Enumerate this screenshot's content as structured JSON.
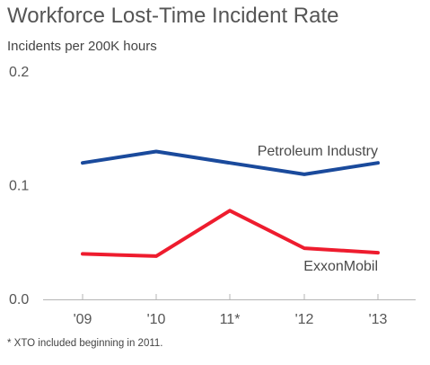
{
  "title": "Workforce Lost-Time Incident Rate",
  "subtitle": "Incidents per 200K hours",
  "footnote": "* XTO included beginning in 2011.",
  "colors": {
    "petroleum": "#1a4a9c",
    "exxonmobil": "#ee1c2e",
    "axis": "#b5b5b5",
    "text": "#555555"
  },
  "chart_data": {
    "type": "line",
    "title": "Workforce Lost-Time Incident Rate",
    "ylabel": "Incidents per 200K hours",
    "xlabel": "",
    "categories": [
      "'09",
      "'10",
      "11*",
      "'12",
      "'13"
    ],
    "ylim": [
      0.0,
      0.2
    ],
    "yticks": [
      "0.0",
      "0.1",
      "0.2"
    ],
    "ytick_values": [
      0.0,
      0.1,
      0.2
    ],
    "grid": false,
    "series": [
      {
        "name": "Petroleum Industry",
        "color": "#1a4a9c",
        "values": [
          0.12,
          0.13,
          0.12,
          0.11,
          0.12
        ]
      },
      {
        "name": "ExxonMobil",
        "color": "#ee1c2e",
        "values": [
          0.04,
          0.038,
          0.078,
          0.045,
          0.041
        ]
      }
    ]
  }
}
